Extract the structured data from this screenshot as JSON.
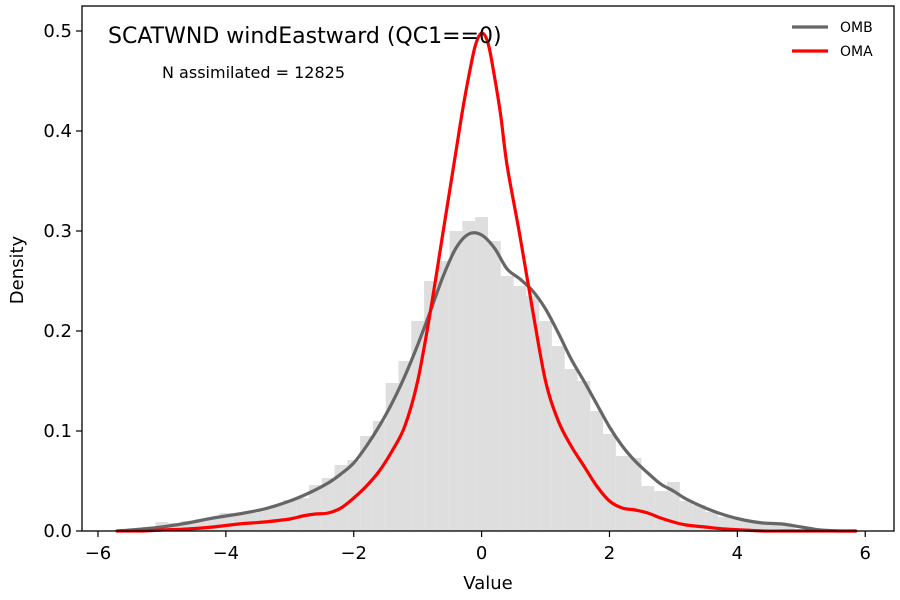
{
  "chart_data": {
    "type": "line",
    "title": "SCATWND windEastward (QC1==0)",
    "annotation": "N assimilated = 12825",
    "xlabel": "Value",
    "ylabel": "Density",
    "xlim": [
      -6.25,
      6.45
    ],
    "ylim": [
      0,
      0.525
    ],
    "xticks": [
      -6,
      -4,
      -2,
      0,
      2,
      4,
      6
    ],
    "xtick_labels": [
      "−6",
      "−4",
      "−2",
      "0",
      "2",
      "4",
      "6"
    ],
    "yticks": [
      0.0,
      0.1,
      0.2,
      0.3,
      0.4,
      0.5
    ],
    "ytick_labels": [
      "0.0",
      "0.1",
      "0.2",
      "0.3",
      "0.4",
      "0.5"
    ],
    "grid": false,
    "legend_position": "top-right",
    "histogram": {
      "color": "#dedede",
      "bin_width": 0.2,
      "bins": [
        [
          -5.6,
          0.001
        ],
        [
          -5.4,
          0.002
        ],
        [
          -5.2,
          0.004
        ],
        [
          -5.0,
          0.009
        ],
        [
          -4.8,
          0.008
        ],
        [
          -4.6,
          0.01
        ],
        [
          -4.4,
          0.011
        ],
        [
          -4.2,
          0.013
        ],
        [
          -4.0,
          0.018
        ],
        [
          -3.8,
          0.017
        ],
        [
          -3.6,
          0.018
        ],
        [
          -3.4,
          0.022
        ],
        [
          -3.2,
          0.026
        ],
        [
          -3.0,
          0.031
        ],
        [
          -2.8,
          0.033
        ],
        [
          -2.6,
          0.046
        ],
        [
          -2.4,
          0.053
        ],
        [
          -2.2,
          0.066
        ],
        [
          -2.0,
          0.071
        ],
        [
          -1.8,
          0.095
        ],
        [
          -1.6,
          0.11
        ],
        [
          -1.4,
          0.148
        ],
        [
          -1.2,
          0.17
        ],
        [
          -1.0,
          0.21
        ],
        [
          -0.8,
          0.25
        ],
        [
          -0.6,
          0.27
        ],
        [
          -0.4,
          0.3
        ],
        [
          -0.2,
          0.31
        ],
        [
          0.0,
          0.314
        ],
        [
          0.2,
          0.29
        ],
        [
          0.4,
          0.255
        ],
        [
          0.6,
          0.245
        ],
        [
          0.8,
          0.235
        ],
        [
          1.0,
          0.21
        ],
        [
          1.2,
          0.185
        ],
        [
          1.4,
          0.162
        ],
        [
          1.6,
          0.15
        ],
        [
          1.8,
          0.12
        ],
        [
          2.0,
          0.097
        ],
        [
          2.2,
          0.075
        ],
        [
          2.4,
          0.073
        ],
        [
          2.6,
          0.045
        ],
        [
          2.8,
          0.04
        ],
        [
          3.0,
          0.049
        ],
        [
          3.2,
          0.03
        ],
        [
          3.4,
          0.026
        ],
        [
          3.6,
          0.019
        ],
        [
          3.8,
          0.014
        ],
        [
          4.0,
          0.013
        ],
        [
          4.2,
          0.01
        ],
        [
          4.4,
          0.009
        ],
        [
          4.6,
          0.008
        ],
        [
          4.8,
          0.006
        ],
        [
          5.0,
          0.002
        ]
      ]
    },
    "series": [
      {
        "name": "OMB",
        "color": "#666666",
        "x": [
          -5.7,
          -5.3,
          -5.0,
          -4.6,
          -4.2,
          -3.8,
          -3.4,
          -3.0,
          -2.7,
          -2.4,
          -2.2,
          -2.0,
          -1.8,
          -1.6,
          -1.4,
          -1.2,
          -1.0,
          -0.8,
          -0.6,
          -0.4,
          -0.2,
          0.0,
          0.2,
          0.4,
          0.6,
          0.8,
          1.0,
          1.2,
          1.4,
          1.6,
          1.8,
          2.0,
          2.2,
          2.4,
          2.6,
          2.8,
          3.0,
          3.2,
          3.5,
          3.8,
          4.1,
          4.4,
          4.7,
          5.0,
          5.3,
          5.6,
          5.85
        ],
        "values": [
          0.0,
          0.002,
          0.004,
          0.008,
          0.013,
          0.017,
          0.022,
          0.03,
          0.038,
          0.048,
          0.057,
          0.068,
          0.085,
          0.105,
          0.128,
          0.155,
          0.186,
          0.22,
          0.255,
          0.283,
          0.297,
          0.296,
          0.283,
          0.262,
          0.252,
          0.24,
          0.222,
          0.198,
          0.172,
          0.15,
          0.127,
          0.104,
          0.085,
          0.07,
          0.058,
          0.047,
          0.04,
          0.032,
          0.023,
          0.016,
          0.011,
          0.008,
          0.007,
          0.004,
          0.001,
          0.0,
          0.0
        ]
      },
      {
        "name": "OMA",
        "color": "#ff0000",
        "x": [
          -5.7,
          -5.3,
          -5.0,
          -4.6,
          -4.2,
          -3.8,
          -3.4,
          -3.0,
          -2.8,
          -2.6,
          -2.4,
          -2.2,
          -2.0,
          -1.8,
          -1.6,
          -1.4,
          -1.2,
          -1.0,
          -0.8,
          -0.6,
          -0.4,
          -0.3,
          -0.2,
          -0.1,
          0.0,
          0.1,
          0.2,
          0.3,
          0.4,
          0.6,
          0.8,
          1.0,
          1.2,
          1.4,
          1.6,
          1.8,
          2.0,
          2.2,
          2.4,
          2.6,
          2.8,
          3.0,
          3.2,
          3.5,
          3.8,
          4.1,
          4.4,
          4.7,
          5.0,
          5.3,
          5.6,
          5.85
        ],
        "values": [
          0.0,
          0.0,
          0.001,
          0.002,
          0.004,
          0.007,
          0.009,
          0.012,
          0.015,
          0.017,
          0.018,
          0.023,
          0.033,
          0.045,
          0.06,
          0.08,
          0.105,
          0.15,
          0.22,
          0.3,
          0.38,
          0.42,
          0.455,
          0.485,
          0.498,
          0.488,
          0.455,
          0.415,
          0.365,
          0.295,
          0.22,
          0.15,
          0.11,
          0.085,
          0.065,
          0.045,
          0.03,
          0.023,
          0.021,
          0.018,
          0.013,
          0.009,
          0.006,
          0.004,
          0.002,
          0.001,
          0.0,
          0.0,
          0.0,
          0.0,
          0.0,
          0.0
        ]
      }
    ]
  }
}
